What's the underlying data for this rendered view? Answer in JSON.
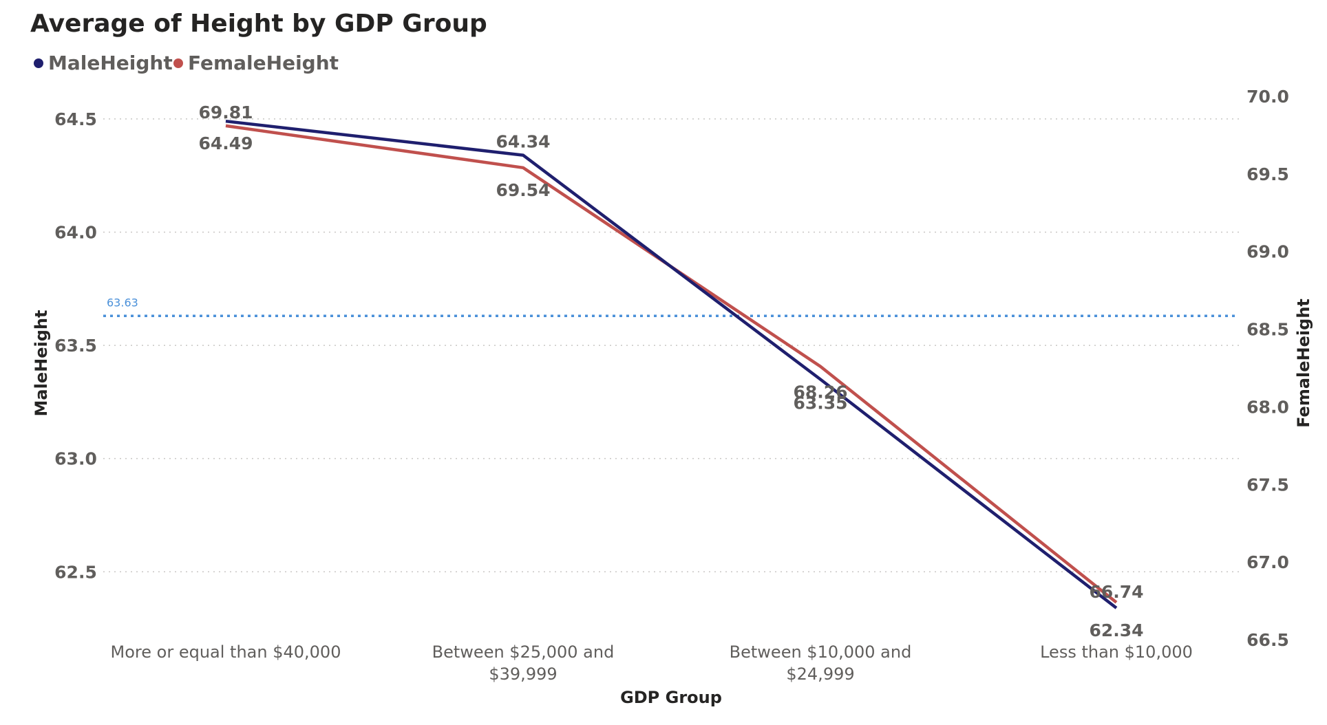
{
  "chart_data": {
    "type": "line",
    "title": "Average of Height by GDP Group",
    "xlabel": "GDP Group",
    "ylabel": "MaleHeight",
    "y2label": "FemaleHeight",
    "categories": [
      [
        "More or equal than $40,000"
      ],
      [
        "Between $25,000 and",
        "$39,999"
      ],
      [
        "Between $10,000 and",
        "$24,999"
      ],
      [
        "Less than $10,000"
      ]
    ],
    "series": [
      {
        "name": "MaleHeight",
        "axis": "left",
        "color": "#1f1f6e",
        "values": [
          64.49,
          64.34,
          63.35,
          62.34
        ],
        "labels": [
          "64.49",
          "64.34",
          "63.35",
          "62.34"
        ]
      },
      {
        "name": "FemaleHeight",
        "axis": "right",
        "color": "#c0504d",
        "values": [
          69.81,
          69.54,
          68.26,
          66.74
        ],
        "labels": [
          "69.81",
          "69.54",
          "68.26",
          "66.74"
        ]
      }
    ],
    "ylim": [
      62.2,
      64.6
    ],
    "y2lim": [
      66.5,
      70.0
    ],
    "yticks": [
      "62.5",
      "63.0",
      "63.5",
      "64.0",
      "64.5"
    ],
    "y2ticks": [
      "66.5",
      "67.0",
      "67.5",
      "68.0",
      "68.5",
      "69.0",
      "69.5",
      "70.0"
    ],
    "reference_line": {
      "axis": "left",
      "value": 63.63,
      "label": "63.63",
      "color": "#4a90d9"
    },
    "legend_position": "top-left",
    "grid": true
  }
}
